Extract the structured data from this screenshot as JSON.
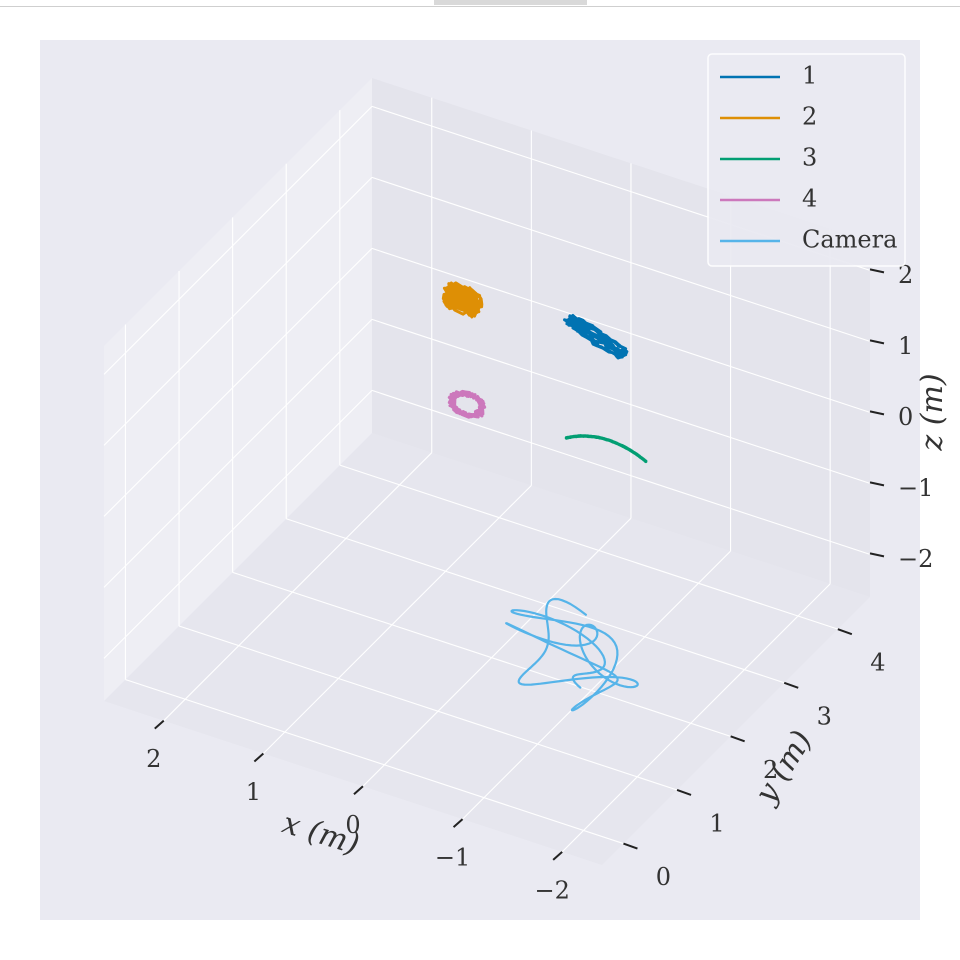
{
  "window": {
    "tab_visible": true
  },
  "chart_data": {
    "type": "line3d",
    "title": "",
    "xlabel": "x (m)",
    "ylabel": "y (m)",
    "zlabel": "z (m)",
    "x_ticks": [
      -2,
      -1,
      0,
      1,
      2
    ],
    "y_ticks": [
      0,
      1,
      2,
      3,
      4
    ],
    "z_ticks": [
      -2,
      -1,
      0,
      1,
      2
    ],
    "x_tick_labels": [
      "−2",
      "−1",
      "0",
      "1",
      "2"
    ],
    "y_tick_labels": [
      "0",
      "1",
      "2",
      "3",
      "4"
    ],
    "z_tick_labels": [
      "−2",
      "−1",
      "0",
      "1",
      "2"
    ],
    "xlim": [
      -2.4,
      2.6
    ],
    "ylim": [
      -0.4,
      4.6
    ],
    "zlim": [
      -2.6,
      2.4
    ],
    "grid": true,
    "legend_position": "top-right",
    "background": "#eaeaf2",
    "series": [
      {
        "name": "1",
        "color": "#0173b2",
        "center": [
          -0.35,
          3.3,
          1.1
        ],
        "radius": [
          0.28,
          0.05,
          0.12
        ],
        "loops": 6,
        "shape": "streak",
        "jitter": 0.02
      },
      {
        "name": "2",
        "color": "#de8f05",
        "center": [
          1.05,
          3.4,
          0.9
        ],
        "radius": [
          0.14,
          0.05,
          0.12
        ],
        "loops": 10,
        "shape": "scribble",
        "jitter": 0.05
      },
      {
        "name": "3",
        "color": "#029e73",
        "center": [
          -0.45,
          3.3,
          -0.3
        ],
        "radius": [
          0.4,
          0.05,
          0.18
        ],
        "loops": 3,
        "shape": "arc",
        "jitter": 0.01
      },
      {
        "name": "4",
        "color": "#cc78bc",
        "center": [
          1.0,
          3.4,
          -0.55
        ],
        "radius": [
          0.15,
          0.05,
          0.1
        ],
        "loops": 5,
        "shape": "ring",
        "jitter": 0.03
      },
      {
        "name": "Camera",
        "color": "#56b4e9",
        "center": [
          -0.9,
          1.9,
          -2.1
        ],
        "radius": [
          0.75,
          0.6,
          0.28
        ],
        "loops": 3,
        "shape": "wander",
        "jitter": 0.08
      }
    ]
  }
}
